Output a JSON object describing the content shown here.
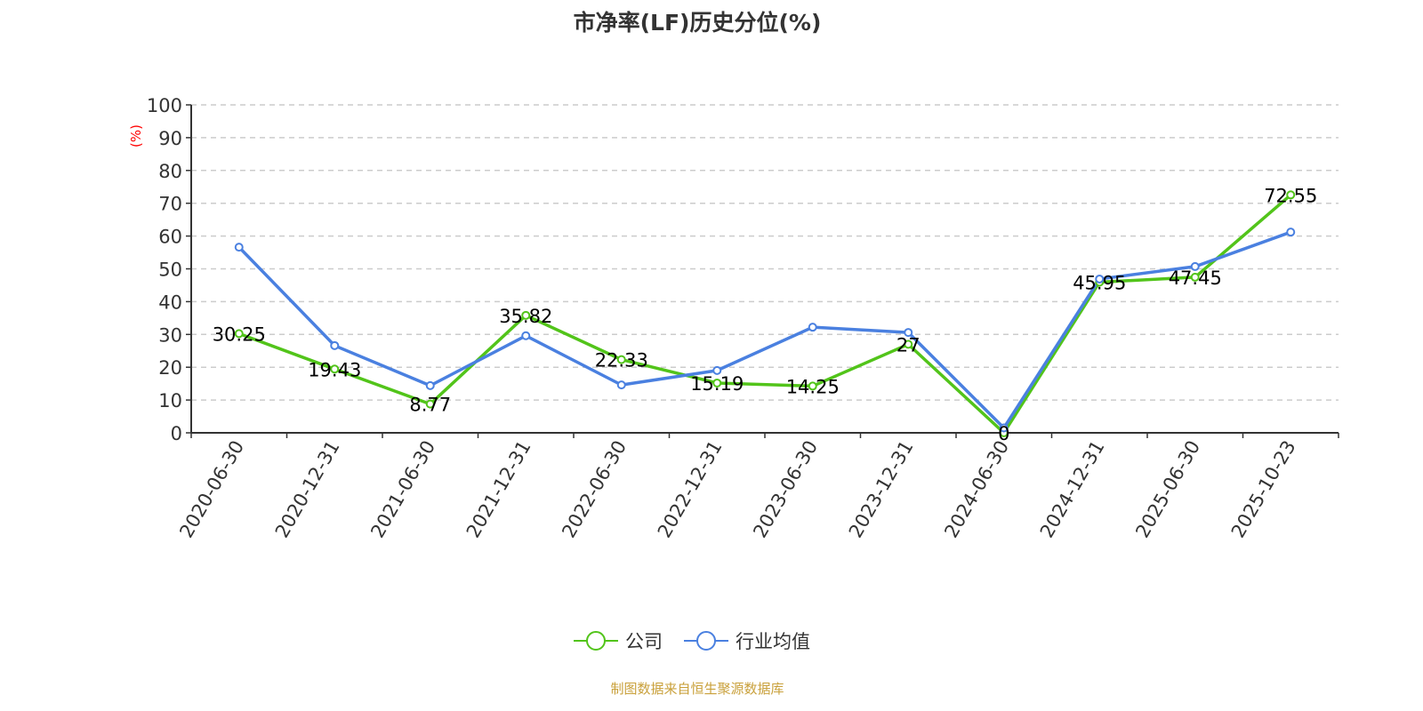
{
  "chart_data": {
    "type": "line",
    "title": "市净率(LF)历史分位(%)",
    "ylabel": "(%)",
    "ylim": [
      0,
      100
    ],
    "yticks": [
      "0",
      "10",
      "20",
      "30",
      "40",
      "50",
      "60",
      "70",
      "80",
      "90",
      "100"
    ],
    "grid": true,
    "legend_position": "bottom",
    "categories": [
      "2020-06-30",
      "2020-12-31",
      "2021-06-30",
      "2021-12-31",
      "2022-06-30",
      "2022-12-31",
      "2023-06-30",
      "2023-12-31",
      "2024-06-30",
      "2024-12-31",
      "2025-06-30",
      "2025-10-23"
    ],
    "series": [
      {
        "name": "公司",
        "color": "#52c41a",
        "values": [
          30.25,
          19.43,
          8.77,
          35.82,
          22.33,
          15.19,
          14.25,
          27,
          0,
          45.95,
          47.45,
          72.55
        ],
        "labels": [
          "30.25",
          "19.43",
          "8.77",
          "35.82",
          "22.33",
          "15.19",
          "14.25",
          "27",
          "0",
          "45.95",
          "47.45",
          "72.55"
        ]
      },
      {
        "name": "行业均值",
        "color": "#4a80e0",
        "values": [
          56.6,
          26.6,
          14.4,
          29.6,
          14.6,
          19.0,
          32.2,
          30.6,
          1.5,
          46.9,
          50.7,
          61.2
        ]
      }
    ]
  },
  "source": "制图数据来自恒生聚源数据库"
}
